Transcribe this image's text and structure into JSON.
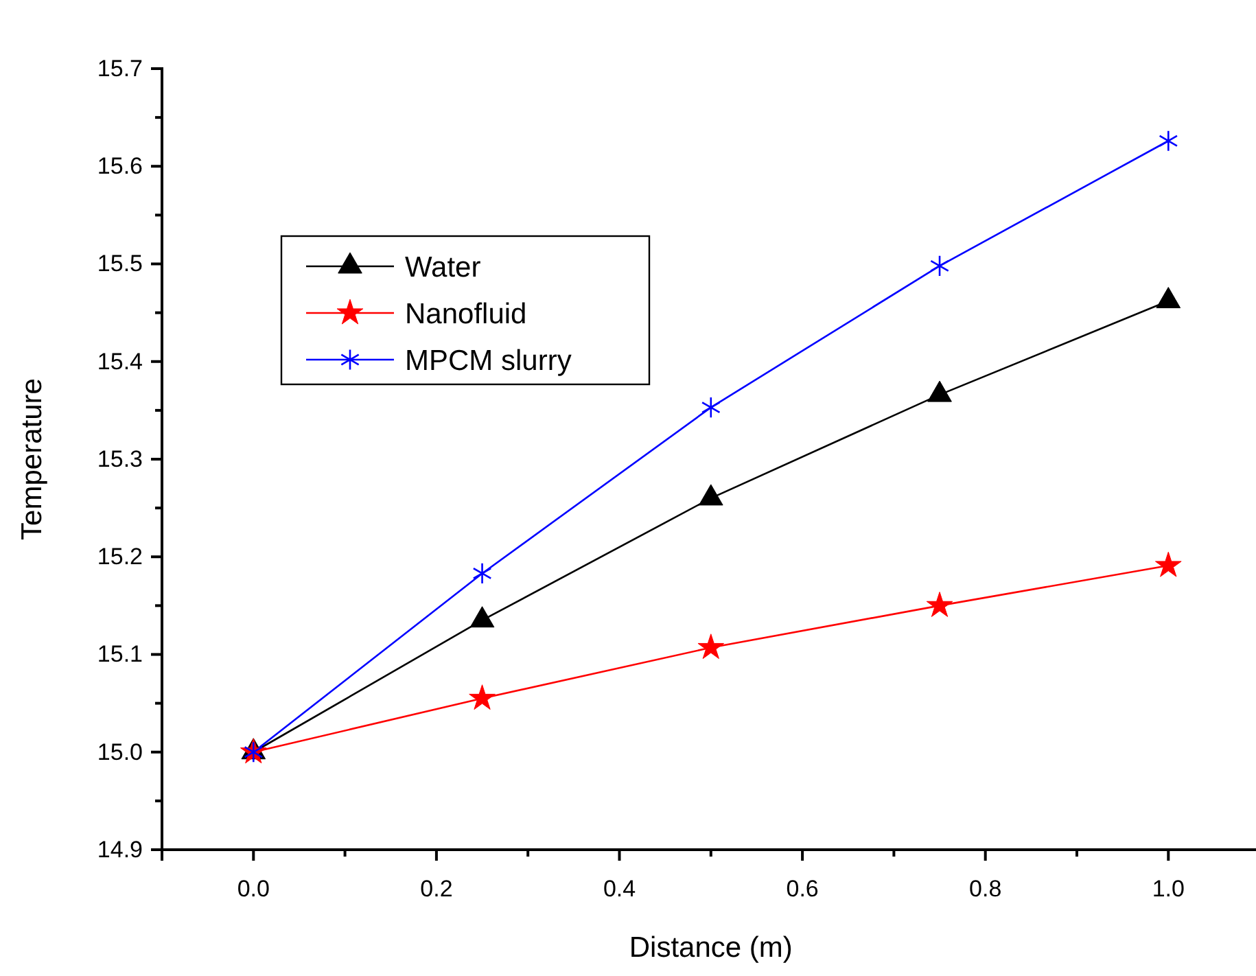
{
  "chart_data": {
    "type": "line",
    "xlabel": "Distance (m)",
    "ylabel": "Temperature",
    "x": [
      0,
      0.25,
      0.5,
      0.75,
      1.0
    ],
    "series": [
      {
        "name": "Water",
        "color": "#000000",
        "marker": "triangle",
        "values": [
          15.0,
          15.135,
          15.26,
          15.366,
          15.462
        ]
      },
      {
        "name": "Nanofluid",
        "color": "#ff0000",
        "marker": "star",
        "values": [
          15.0,
          15.055,
          15.107,
          15.15,
          15.191
        ]
      },
      {
        "name": "MPCM slurry",
        "color": "#0000ff",
        "marker": "cross",
        "values": [
          15.0,
          15.183,
          15.353,
          15.498,
          15.626
        ]
      }
    ],
    "xlim": [
      -0.1,
      1.1
    ],
    "xticks": [
      {
        "value": -0.1,
        "label": null
      },
      "0.0",
      {
        "value": 0.1,
        "label": null
      },
      {
        "value": 0.2,
        "label": "0.2"
      },
      {
        "value": 0.3,
        "label": null
      },
      {
        "value": 0.4,
        "label": "0.4"
      },
      {
        "value": 0.5,
        "label": null
      },
      {
        "value": 0.6,
        "label": "0.6"
      },
      {
        "value": 0.7,
        "label": null
      },
      {
        "value": 0.8,
        "label": "0.8"
      },
      {
        "value": 0.9,
        "label": null
      },
      {
        "value": 1.0,
        "label": "1.0"
      }
    ],
    "ylim": [
      14.9,
      15.7
    ],
    "yticks": [
      14.9,
      {
        "value": 14.95,
        "label": null
      },
      {
        "value": 15.0,
        "label": "15.0"
      },
      {
        "value": 15.05,
        "label": null
      },
      15.1,
      {
        "value": 15.15,
        "label": null
      },
      15.2,
      {
        "value": 15.25,
        "label": null
      },
      15.3,
      {
        "value": 15.35,
        "label": null
      },
      15.4,
      {
        "value": 15.45,
        "label": null
      },
      15.5,
      {
        "value": 15.55,
        "label": null
      },
      15.6,
      {
        "value": 15.65,
        "label": null
      },
      15.7
    ],
    "legend": "top left",
    "grid": false,
    "line_style": "solid"
  }
}
